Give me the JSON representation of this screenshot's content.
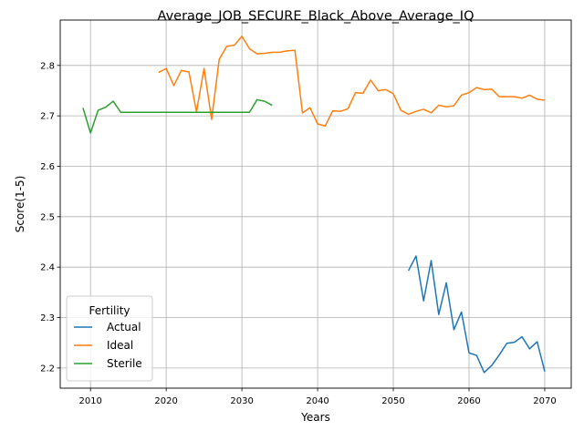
{
  "chart_data": {
    "type": "line",
    "title": "Average_JOB_SECURE_Black_Above_Average_IQ",
    "xlabel": "Years",
    "ylabel": "Score(1-5)",
    "xlim": [
      2006,
      2073.5
    ],
    "ylim": [
      2.16,
      2.89
    ],
    "xticks": [
      2010,
      2020,
      2030,
      2040,
      2050,
      2060,
      2070
    ],
    "yticks": [
      2.2,
      2.3,
      2.4,
      2.5,
      2.6,
      2.7,
      2.8
    ],
    "ytick_labels": [
      "2.2",
      "2.3",
      "2.4",
      "2.5",
      "2.6",
      "2.7",
      "2.8"
    ],
    "grid": true,
    "legend": {
      "title": "Fertility",
      "placement": "lower-left"
    },
    "series": [
      {
        "name": "Actual",
        "color": "#1f77b4",
        "x": [
          2052,
          2053,
          2054,
          2055,
          2056,
          2057,
          2058,
          2059,
          2060,
          2061,
          2062,
          2063,
          2064,
          2065,
          2066,
          2067,
          2068,
          2069,
          2070
        ],
        "y": [
          2.393,
          2.422,
          2.333,
          2.413,
          2.306,
          2.369,
          2.276,
          2.311,
          2.23,
          2.225,
          2.191,
          2.205,
          2.226,
          2.249,
          2.251,
          2.262,
          2.238,
          2.252,
          2.193
        ]
      },
      {
        "name": "Ideal",
        "color": "#ff7f0e",
        "x": [
          2019,
          2020,
          2021,
          2022,
          2023,
          2024,
          2025,
          2026,
          2027,
          2028,
          2029,
          2030,
          2031,
          2032,
          2033,
          2034,
          2035,
          2036,
          2037,
          2038,
          2039,
          2040,
          2041,
          2042,
          2043,
          2044,
          2045,
          2046,
          2047,
          2048,
          2049,
          2050,
          2051,
          2052,
          2053,
          2054,
          2055,
          2056,
          2057,
          2058,
          2059,
          2060,
          2061,
          2062,
          2063,
          2064,
          2065,
          2066,
          2067,
          2068,
          2069,
          2070
        ],
        "y": [
          2.786,
          2.794,
          2.76,
          2.79,
          2.787,
          2.708,
          2.794,
          2.693,
          2.812,
          2.838,
          2.84,
          2.858,
          2.833,
          2.823,
          2.824,
          2.826,
          2.826,
          2.829,
          2.83,
          2.706,
          2.716,
          2.684,
          2.68,
          2.71,
          2.709,
          2.714,
          2.746,
          2.745,
          2.771,
          2.75,
          2.752,
          2.744,
          2.711,
          2.703,
          2.709,
          2.713,
          2.706,
          2.721,
          2.718,
          2.72,
          2.741,
          2.746,
          2.756,
          2.752,
          2.753,
          2.738,
          2.738,
          2.738,
          2.735,
          2.741,
          2.733,
          2.731
        ]
      },
      {
        "name": "Sterile",
        "color": "#2ca02c",
        "x": [
          2009,
          2010,
          2011,
          2012,
          2013,
          2014,
          2015,
          2016,
          2017,
          2018,
          2019,
          2020,
          2021,
          2022,
          2023,
          2024,
          2025,
          2026,
          2027,
          2028,
          2029,
          2030,
          2031,
          2032,
          2033,
          2034
        ],
        "y": [
          2.716,
          2.666,
          2.711,
          2.717,
          2.729,
          2.707,
          2.707,
          2.707,
          2.707,
          2.707,
          2.707,
          2.707,
          2.707,
          2.707,
          2.707,
          2.707,
          2.707,
          2.707,
          2.707,
          2.707,
          2.707,
          2.707,
          2.707,
          2.732,
          2.729,
          2.721
        ]
      }
    ]
  }
}
